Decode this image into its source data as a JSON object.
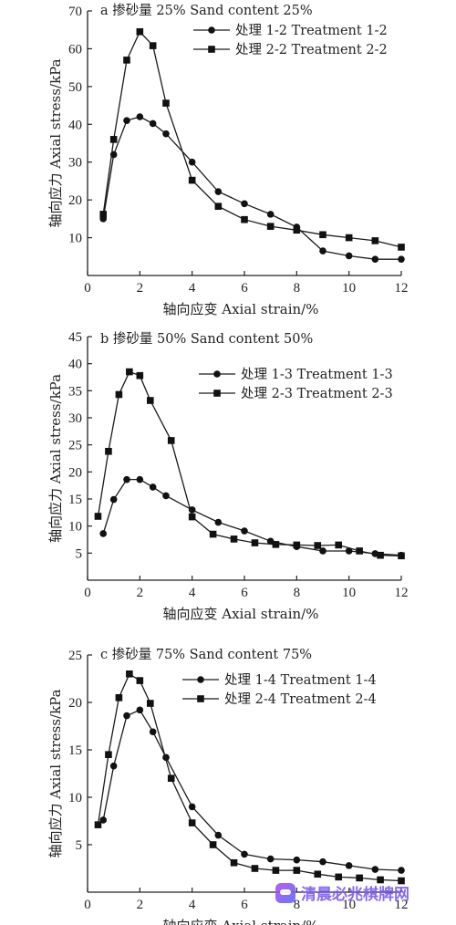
{
  "chart_data": [
    {
      "type": "line",
      "title": "a 掺砂量 25% Sand content 25%",
      "xlabel": "轴向应变 Axial strain/%",
      "ylabel": "轴向应力 Axial stress/kPa",
      "xlim": [
        0,
        12
      ],
      "ylim": [
        0,
        70
      ],
      "xticks": [
        0,
        2,
        4,
        6,
        8,
        10,
        12
      ],
      "yticks": [
        10,
        20,
        30,
        40,
        50,
        60,
        70
      ],
      "legend_position": "top-right",
      "series": [
        {
          "name": "处理 1-2 Treatment 1-2",
          "marker": "circle",
          "x": [
            0.6,
            1.0,
            1.5,
            2.0,
            2.5,
            3.0,
            4.0,
            5.0,
            6.0,
            7.0,
            8.0,
            9.0,
            10.0,
            11.0,
            12.0
          ],
          "y": [
            15.0,
            32.0,
            41.0,
            42.0,
            40.2,
            37.5,
            30.0,
            22.2,
            19.0,
            16.2,
            12.8,
            6.5,
            5.2,
            4.3,
            4.3
          ]
        },
        {
          "name": "处理 2-2 Treatment 2-2",
          "marker": "square",
          "x": [
            0.6,
            1.0,
            1.5,
            2.0,
            2.5,
            3.0,
            4.0,
            5.0,
            6.0,
            7.0,
            8.0,
            9.0,
            10.0,
            11.0,
            12.0
          ],
          "y": [
            16.2,
            36.0,
            57.0,
            64.5,
            60.8,
            45.6,
            25.2,
            18.3,
            14.8,
            13.0,
            12.0,
            10.8,
            10.0,
            9.2,
            7.5
          ]
        }
      ]
    },
    {
      "type": "line",
      "title": "b 掺砂量 50% Sand content 50%",
      "xlabel": "轴向应变 Axial strain/%",
      "ylabel": "轴向应力 Axial stress/kPa",
      "xlim": [
        0,
        12
      ],
      "ylim": [
        0,
        45
      ],
      "xticks": [
        0,
        2,
        4,
        6,
        8,
        10,
        12
      ],
      "yticks": [
        5,
        10,
        15,
        20,
        25,
        30,
        35,
        40,
        45
      ],
      "legend_position": "top-right",
      "series": [
        {
          "name": "处理 1-3 Treatment 1-3",
          "marker": "circle",
          "x": [
            0.6,
            1.0,
            1.5,
            2.0,
            2.5,
            3.0,
            4.0,
            5.0,
            6.0,
            7.0,
            8.0,
            9.0,
            10.0,
            11.0,
            12.0
          ],
          "y": [
            8.6,
            14.9,
            18.6,
            18.6,
            17.2,
            15.6,
            13.0,
            10.7,
            9.1,
            7.2,
            6.2,
            5.4,
            5.4,
            4.9,
            4.6
          ]
        },
        {
          "name": "处理 2-3 Treatment 2-3",
          "marker": "square",
          "x": [
            0.4,
            0.8,
            1.2,
            1.6,
            2.0,
            2.4,
            3.2,
            4.0,
            4.8,
            5.6,
            6.4,
            7.2,
            8.0,
            8.8,
            9.6,
            10.4,
            11.2,
            12.0
          ],
          "y": [
            11.8,
            23.8,
            34.3,
            38.5,
            37.8,
            33.2,
            25.8,
            11.7,
            8.5,
            7.6,
            6.9,
            6.6,
            6.5,
            6.4,
            6.5,
            5.4,
            4.6,
            4.5
          ]
        }
      ]
    },
    {
      "type": "line",
      "title": "c 掺砂量 75% Sand content 75%",
      "xlabel": "轴向应变 Axial strain/%",
      "ylabel": "轴向应力 Axial stress/kPa",
      "xlim": [
        0,
        12
      ],
      "ylim": [
        0,
        25
      ],
      "xticks": [
        0,
        2,
        4,
        6,
        8,
        10,
        12
      ],
      "yticks": [
        5,
        10,
        15,
        20,
        25
      ],
      "legend_position": "top-right",
      "series": [
        {
          "name": "处理 1-4 Treatment 1-4",
          "marker": "circle",
          "x": [
            0.6,
            1.0,
            1.5,
            2.0,
            2.5,
            3.0,
            4.0,
            5.0,
            6.0,
            7.0,
            8.0,
            9.0,
            10.0,
            11.0,
            12.0
          ],
          "y": [
            7.6,
            13.3,
            18.6,
            19.2,
            16.9,
            14.2,
            9.0,
            6.0,
            4.0,
            3.5,
            3.4,
            3.2,
            2.8,
            2.4,
            2.3
          ]
        },
        {
          "name": "处理 2-4 Treatment 2-4",
          "marker": "square",
          "x": [
            0.4,
            0.8,
            1.2,
            1.6,
            2.0,
            2.4,
            3.2,
            4.0,
            4.8,
            5.6,
            6.4,
            7.2,
            8.0,
            8.8,
            9.6,
            10.4,
            11.2,
            12.0
          ],
          "y": [
            7.1,
            14.5,
            20.5,
            23.0,
            22.3,
            19.9,
            12.0,
            7.3,
            5.0,
            3.1,
            2.5,
            2.3,
            2.3,
            1.9,
            1.6,
            1.5,
            1.3,
            1.2
          ]
        }
      ]
    }
  ],
  "watermark": {
    "text": "清晨必兆棋牌网"
  }
}
